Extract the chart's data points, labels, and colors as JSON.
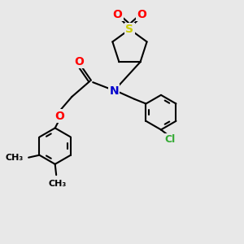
{
  "bg_color": "#e8e8e8",
  "atom_colors": {
    "O": "#ff0000",
    "N": "#0000cc",
    "S": "#cccc00",
    "Cl": "#33aa33",
    "C": "#000000"
  },
  "bond_color": "#000000",
  "line_width": 1.5,
  "font_size": 10
}
